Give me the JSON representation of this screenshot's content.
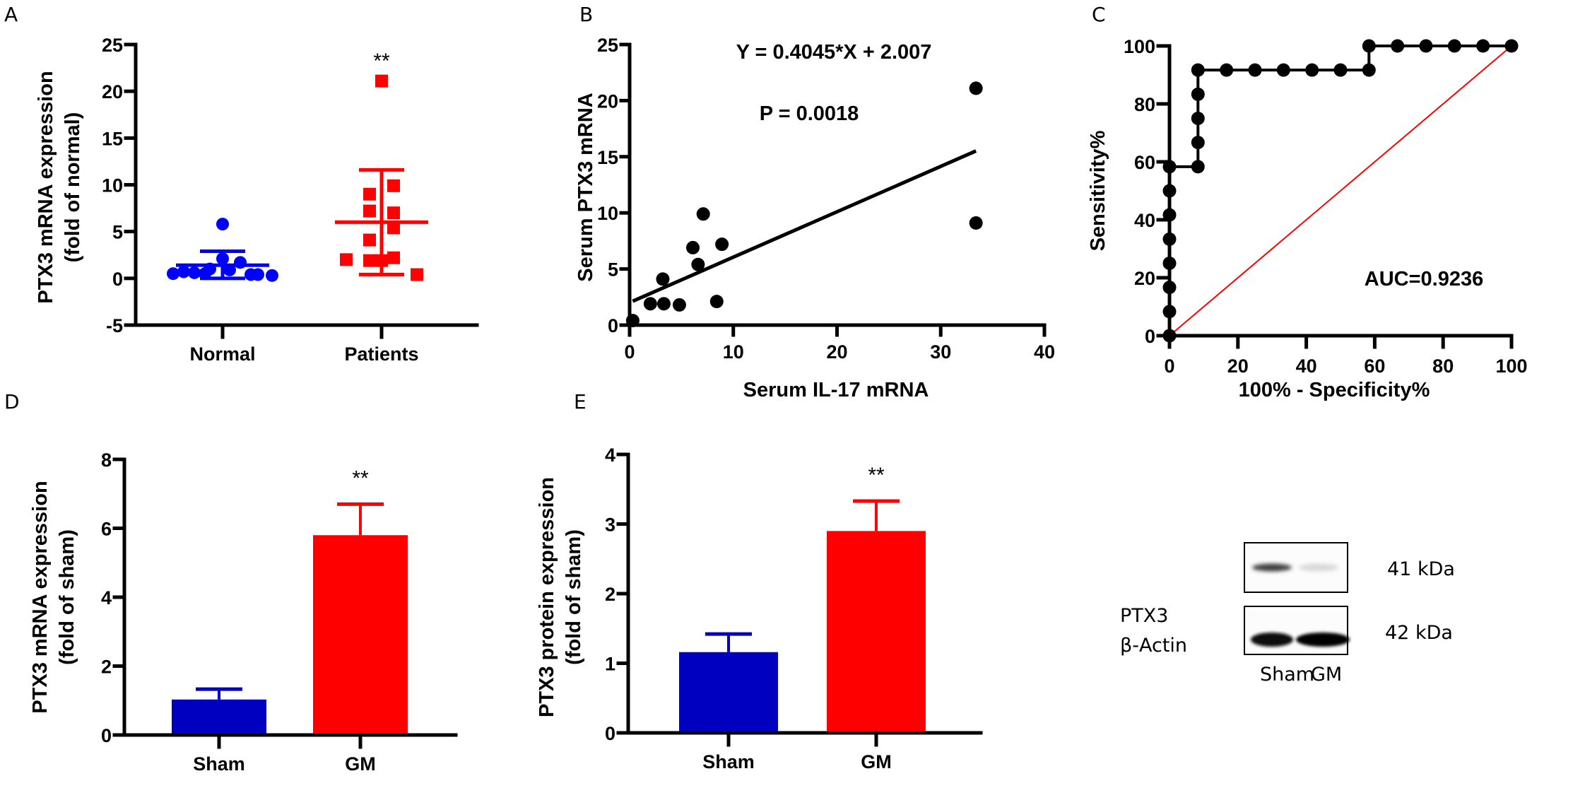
{
  "chart_data": [
    {
      "panel": "A",
      "type": "scatter",
      "title": "",
      "xlabel": "",
      "ylabel": "PTX3 mRNA expression",
      "ylabel2": "(fold of normal)",
      "ylim": [
        -5,
        25
      ],
      "yticks": [
        -5,
        0,
        5,
        10,
        15,
        20,
        25
      ],
      "ytick_labels": [
        "-5",
        "0",
        "5",
        "10",
        "15",
        "20",
        "25"
      ],
      "categories": [
        "Normal",
        "Patients"
      ],
      "series": [
        {
          "name": "Normal",
          "color": "#0000ff",
          "marker": "circle",
          "values": [
            5.8,
            2.1,
            1.7,
            1.0,
            0.7,
            0.6,
            0.5,
            0.4,
            0.3,
            0.4,
            0.9,
            0.5
          ],
          "mean": 1.4,
          "sd_upper": 2.9,
          "sd_lower": 0.0
        },
        {
          "name": "Patients",
          "color": "#ff0000",
          "marker": "square",
          "values": [
            21.1,
            9.9,
            9.0,
            7.2,
            7.0,
            5.4,
            4.1,
            2.0,
            1.9,
            2.2,
            1.9,
            0.4
          ],
          "mean": 6.0,
          "sd_upper": 11.6,
          "sd_lower": 0.4
        }
      ],
      "annotations": [
        {
          "category": "Patients",
          "text": "**"
        }
      ]
    },
    {
      "panel": "B",
      "type": "scatter",
      "title": "",
      "xlabel": "Serum IL-17 mRNA",
      "ylabel": "Serum PTX3 mRNA",
      "xlim": [
        0,
        40
      ],
      "ylim": [
        0,
        25
      ],
      "xticks": [
        0,
        10,
        20,
        30,
        40
      ],
      "xtick_labels": [
        "0",
        "10",
        "20",
        "30",
        "40"
      ],
      "yticks": [
        0,
        5,
        10,
        15,
        20,
        25
      ],
      "ytick_labels": [
        "0",
        "5",
        "10",
        "15",
        "20",
        "25"
      ],
      "series": [
        {
          "name": "samples",
          "color": "#000000",
          "x": [
            0.3,
            2.0,
            3.3,
            4.8,
            3.2,
            6.1,
            6.6,
            7.1,
            8.9,
            8.4,
            33.4,
            33.4
          ],
          "y": [
            0.4,
            1.9,
            1.9,
            1.8,
            4.1,
            6.9,
            5.4,
            9.9,
            7.2,
            2.1,
            21.1,
            9.1
          ]
        }
      ],
      "fit": {
        "slope": 0.4045,
        "intercept": 2.007,
        "x_range": [
          0.3,
          33.4
        ]
      },
      "annotations": [
        {
          "text": "Y = 0.4045*X + 2.007"
        },
        {
          "text": "P = 0.0018"
        }
      ]
    },
    {
      "panel": "C",
      "type": "line",
      "title": "",
      "xlabel": "100% - Specificity%",
      "ylabel": "Sensitivity%",
      "xlim": [
        0,
        100
      ],
      "ylim": [
        0,
        100
      ],
      "xticks": [
        0,
        20,
        40,
        60,
        80,
        100
      ],
      "xtick_labels": [
        "0",
        "20",
        "40",
        "60",
        "80",
        "100"
      ],
      "yticks": [
        0,
        20,
        40,
        60,
        80,
        100
      ],
      "ytick_labels": [
        "0",
        "20",
        "40",
        "60",
        "80",
        "100"
      ],
      "series": [
        {
          "name": "ROC",
          "color": "#000000",
          "x": [
            0,
            0,
            0,
            0,
            0,
            0,
            0,
            0,
            8.33,
            8.33,
            8.33,
            8.33,
            8.33,
            16.67,
            25,
            33.33,
            41.67,
            50,
            58.33,
            58.33,
            66.67,
            75,
            83.33,
            91.67,
            100
          ],
          "y": [
            0,
            8.33,
            16.67,
            25,
            33.33,
            41.67,
            50,
            58.33,
            58.33,
            66.67,
            75,
            83.33,
            91.67,
            91.67,
            91.67,
            91.67,
            91.67,
            91.67,
            91.67,
            100,
            100,
            100,
            100,
            100,
            100
          ]
        },
        {
          "name": "reference",
          "color": "#ff0000",
          "x": [
            0,
            100
          ],
          "y": [
            0,
            100
          ]
        }
      ],
      "annotations": [
        {
          "text": "AUC=0.9236"
        }
      ]
    },
    {
      "panel": "D",
      "type": "bar",
      "title": "",
      "xlabel": "",
      "ylabel": "PTX3 mRNA expression",
      "ylabel2": "(fold of sham)",
      "ylim": [
        0,
        8
      ],
      "yticks": [
        0,
        2,
        4,
        6,
        8
      ],
      "ytick_labels": [
        "0",
        "2",
        "4",
        "6",
        "8"
      ],
      "categories": [
        "Sham",
        "GM"
      ],
      "values": [
        1.03,
        5.8
      ],
      "errors": [
        0.3,
        0.9
      ],
      "colors": [
        "#0000c0",
        "#ff0000"
      ],
      "annotations": [
        {
          "category": "GM",
          "text": "**"
        }
      ]
    },
    {
      "panel": "E",
      "type": "bar",
      "title": "",
      "xlabel": "",
      "ylabel": "PTX3 protein expression",
      "ylabel2": "(fold of sham)",
      "ylim": [
        0,
        4
      ],
      "yticks": [
        0,
        1,
        2,
        3,
        4
      ],
      "ytick_labels": [
        "0",
        "1",
        "2",
        "3",
        "4"
      ],
      "categories": [
        "Sham",
        "GM"
      ],
      "values": [
        1.16,
        2.9
      ],
      "errors": [
        0.26,
        0.43
      ],
      "colors": [
        "#0000c0",
        "#ff0000"
      ],
      "annotations": [
        {
          "category": "GM",
          "text": "**"
        }
      ]
    }
  ],
  "panels": {
    "A": "A",
    "B": "B",
    "C": "C",
    "D": "D",
    "E": "E"
  },
  "western_blot": {
    "rows": [
      {
        "protein": "PTX3",
        "size": "41 kDa",
        "band_intensity": [
          0.75,
          0.15
        ]
      },
      {
        "protein": "β-Actin",
        "size": "42 kDa",
        "band_intensity": [
          0.95,
          1.0
        ]
      }
    ],
    "lanes": [
      "Sham",
      "GM"
    ]
  }
}
